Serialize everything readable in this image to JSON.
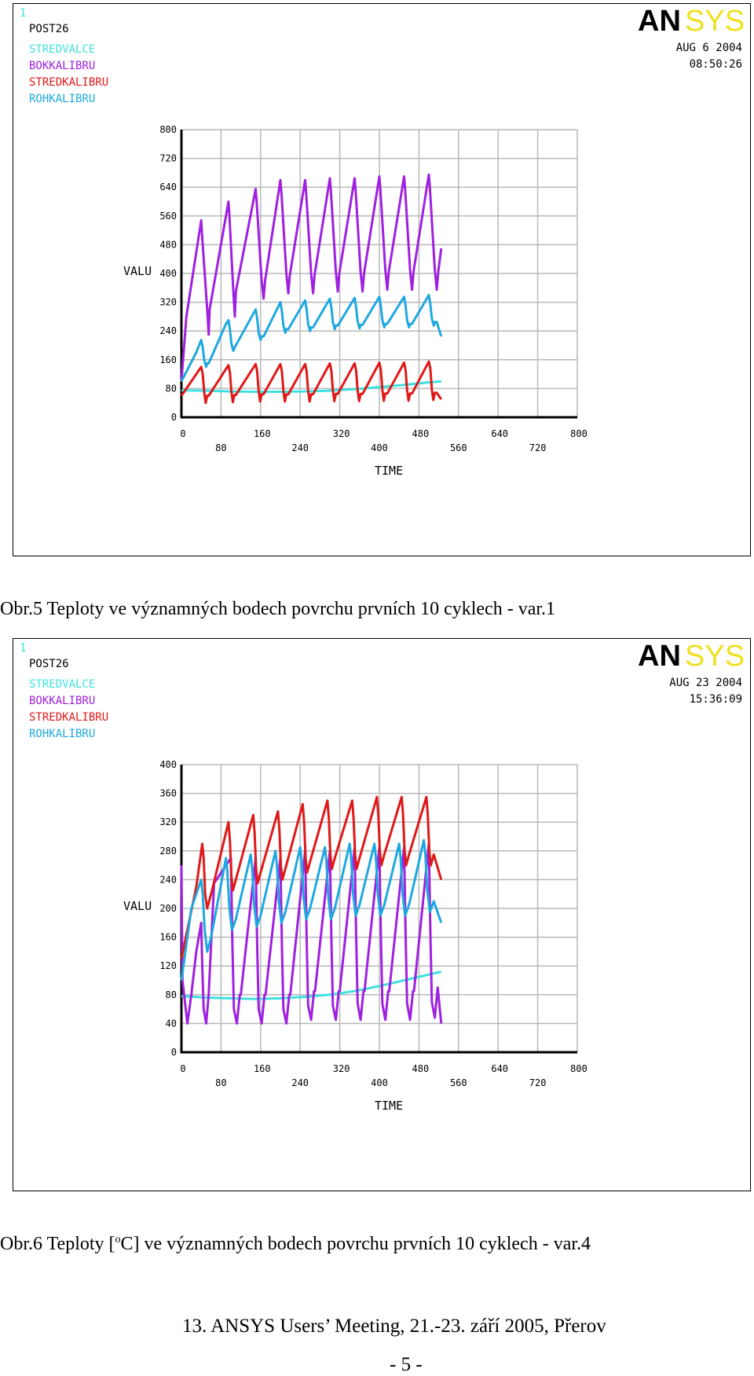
{
  "charts": [
    {
      "window_number": "1",
      "program": "POST26",
      "logo_black": "AN",
      "logo_yellow": "SYS",
      "date": "AUG  6 2004",
      "time": "08:50:26",
      "legend": [
        {
          "name": "STREDVALCE",
          "color": "#3fe0e0"
        },
        {
          "name": "BOKKALIBRU",
          "color": "#a020e0"
        },
        {
          "name": "STREDKALIBRU",
          "color": "#e01818"
        },
        {
          "name": "ROHKALIBRU",
          "color": "#1ea8e0"
        }
      ],
      "ylabel": "VALU",
      "xlabel": "TIME",
      "y_ticks": [
        "0",
        "80",
        "160",
        "240",
        "320",
        "400",
        "480",
        "560",
        "640",
        "720",
        "800"
      ],
      "x_ticks_upper": [
        "0",
        "160",
        "320",
        "480",
        "640",
        "800"
      ],
      "x_ticks_lower": [
        "80",
        "240",
        "400",
        "560",
        "720"
      ]
    },
    {
      "window_number": "1",
      "program": "POST26",
      "logo_black": "AN",
      "logo_yellow": "SYS",
      "date": "AUG 23 2004",
      "time": "15:36:09",
      "legend": [
        {
          "name": "STREDVALCE",
          "color": "#3fe0e0"
        },
        {
          "name": "BOKKALIBRU",
          "color": "#a020e0"
        },
        {
          "name": "STREDKALIBRU",
          "color": "#e01818"
        },
        {
          "name": "ROHKALIBRU",
          "color": "#1ea8e0"
        }
      ],
      "ylabel": "VALU",
      "xlabel": "TIME",
      "y_ticks": [
        "0",
        "40",
        "80",
        "120",
        "160",
        "200",
        "240",
        "280",
        "320",
        "360",
        "400"
      ],
      "x_ticks_upper": [
        "0",
        "160",
        "320",
        "480",
        "640",
        "800"
      ],
      "x_ticks_lower": [
        "80",
        "240",
        "400",
        "560",
        "720"
      ]
    }
  ],
  "chart_data": [
    {
      "type": "line",
      "xlabel": "TIME",
      "ylabel": "VALU",
      "xlim": [
        0,
        800
      ],
      "ylim": [
        0,
        800
      ],
      "grid": true,
      "legend_position": "top-left",
      "series": [
        {
          "name": "STREDVALCE",
          "color": "#3fe0e0",
          "x": [
            0,
            50,
            100,
            150,
            200,
            250,
            300,
            350,
            400,
            450,
            500,
            525
          ],
          "y": [
            75,
            74,
            72,
            71,
            71,
            72,
            74,
            78,
            84,
            90,
            97,
            100
          ]
        },
        {
          "name": "BOKKALIBRU",
          "color": "#a020e0",
          "x": [
            0,
            10,
            40,
            42,
            52,
            55,
            57,
            95,
            97,
            105,
            108,
            110,
            150,
            152,
            162,
            166,
            169,
            200,
            202,
            212,
            216,
            219,
            250,
            252,
            262,
            266,
            269,
            300,
            302,
            312,
            316,
            319,
            350,
            352,
            362,
            366,
            369,
            400,
            402,
            412,
            416,
            419,
            450,
            452,
            462,
            466,
            469,
            500,
            502,
            512,
            516,
            519,
            525
          ],
          "y": [
            100,
            280,
            548,
            500,
            300,
            230,
            300,
            600,
            560,
            350,
            280,
            350,
            635,
            600,
            380,
            330,
            380,
            660,
            625,
            400,
            345,
            395,
            660,
            625,
            400,
            345,
            395,
            665,
            630,
            405,
            350,
            400,
            665,
            630,
            405,
            350,
            400,
            670,
            635,
            410,
            355,
            405,
            670,
            635,
            410,
            355,
            405,
            675,
            640,
            410,
            355,
            405,
            470
          ]
        },
        {
          "name": "STREDKALIBRU",
          "color": "#e01818",
          "x": [
            0,
            40,
            43,
            46,
            49,
            52,
            55,
            95,
            98,
            101,
            104,
            107,
            110,
            150,
            153,
            156,
            159,
            162,
            166,
            200,
            203,
            206,
            209,
            212,
            216,
            250,
            253,
            256,
            259,
            262,
            266,
            300,
            303,
            306,
            309,
            312,
            316,
            350,
            353,
            356,
            359,
            362,
            366,
            400,
            403,
            406,
            409,
            412,
            416,
            450,
            453,
            456,
            459,
            462,
            466,
            500,
            503,
            506,
            509,
            512,
            516,
            525
          ],
          "y": [
            60,
            140,
            120,
            70,
            40,
            60,
            60,
            145,
            125,
            72,
            42,
            62,
            62,
            148,
            128,
            74,
            44,
            64,
            64,
            148,
            128,
            74,
            44,
            64,
            64,
            148,
            128,
            74,
            44,
            64,
            64,
            150,
            130,
            75,
            45,
            65,
            65,
            150,
            130,
            75,
            45,
            65,
            65,
            152,
            132,
            76,
            46,
            66,
            66,
            152,
            132,
            76,
            46,
            66,
            66,
            155,
            135,
            78,
            48,
            68,
            68,
            50
          ]
        },
        {
          "name": "ROHKALIBRU",
          "color": "#1ea8e0",
          "x": [
            0,
            30,
            40,
            43,
            46,
            50,
            52,
            55,
            90,
            95,
            98,
            101,
            105,
            108,
            150,
            153,
            156,
            160,
            162,
            166,
            200,
            203,
            206,
            210,
            212,
            216,
            250,
            253,
            256,
            260,
            262,
            266,
            300,
            303,
            306,
            310,
            312,
            316,
            350,
            353,
            356,
            360,
            362,
            366,
            400,
            403,
            406,
            410,
            412,
            416,
            450,
            453,
            456,
            460,
            462,
            466,
            500,
            503,
            506,
            510,
            512,
            516,
            525
          ],
          "y": [
            100,
            180,
            215,
            195,
            160,
            140,
            150,
            150,
            260,
            270,
            245,
            205,
            185,
            195,
            300,
            275,
            235,
            215,
            225,
            225,
            320,
            295,
            255,
            235,
            245,
            245,
            325,
            300,
            260,
            240,
            250,
            250,
            330,
            305,
            265,
            245,
            255,
            255,
            332,
            307,
            267,
            247,
            257,
            257,
            335,
            310,
            270,
            250,
            260,
            260,
            335,
            310,
            270,
            250,
            260,
            260,
            340,
            315,
            275,
            255,
            265,
            265,
            225
          ]
        }
      ]
    },
    {
      "type": "line",
      "xlabel": "TIME",
      "ylabel": "VALU",
      "xlim": [
        0,
        800
      ],
      "ylim": [
        0,
        400
      ],
      "grid": true,
      "legend_position": "top-left",
      "series": [
        {
          "name": "STREDVALCE",
          "color": "#3fe0e0",
          "x": [
            0,
            50,
            100,
            150,
            200,
            250,
            300,
            350,
            400,
            450,
            500,
            525
          ],
          "y": [
            78,
            76,
            75,
            74,
            75,
            77,
            80,
            85,
            92,
            100,
            108,
            112
          ]
        },
        {
          "name": "BOKKALIBRU",
          "color": "#a020e0",
          "x": [
            0,
            2,
            12,
            20,
            30,
            40,
            42,
            45,
            50,
            55,
            60,
            66,
            100,
            103,
            106,
            112,
            118,
            120,
            150,
            153,
            156,
            162,
            168,
            170,
            200,
            203,
            206,
            212,
            218,
            220,
            250,
            253,
            256,
            262,
            268,
            270,
            300,
            303,
            306,
            312,
            318,
            320,
            350,
            353,
            356,
            362,
            368,
            370,
            400,
            403,
            406,
            412,
            418,
            420,
            450,
            453,
            456,
            462,
            468,
            470,
            500,
            503,
            506,
            512,
            518,
            525
          ],
          "y": [
            260,
            100,
            40,
            80,
            140,
            180,
            120,
            60,
            40,
            80,
            150,
            235,
            270,
            150,
            60,
            40,
            80,
            80,
            270,
            150,
            60,
            40,
            80,
            80,
            270,
            150,
            60,
            40,
            80,
            80,
            280,
            160,
            65,
            45,
            85,
            85,
            280,
            160,
            65,
            45,
            85,
            85,
            285,
            165,
            68,
            45,
            85,
            85,
            285,
            165,
            68,
            45,
            85,
            85,
            285,
            165,
            68,
            45,
            85,
            85,
            290,
            170,
            70,
            48,
            90,
            40
          ]
        },
        {
          "name": "STREDKALIBRU",
          "color": "#e01818",
          "x": [
            0,
            30,
            42,
            45,
            48,
            52,
            60,
            95,
            98,
            101,
            104,
            110,
            145,
            148,
            151,
            154,
            160,
            195,
            198,
            201,
            204,
            210,
            245,
            248,
            251,
            254,
            260,
            295,
            298,
            301,
            304,
            310,
            345,
            348,
            351,
            354,
            360,
            395,
            398,
            401,
            404,
            410,
            445,
            448,
            451,
            454,
            460,
            495,
            498,
            501,
            504,
            510,
            525
          ],
          "y": [
            130,
            230,
            290,
            270,
            220,
            200,
            220,
            320,
            295,
            245,
            225,
            240,
            330,
            305,
            255,
            235,
            250,
            335,
            310,
            260,
            240,
            255,
            345,
            320,
            270,
            250,
            265,
            350,
            325,
            275,
            255,
            270,
            350,
            325,
            275,
            255,
            270,
            355,
            330,
            280,
            260,
            275,
            355,
            330,
            280,
            260,
            275,
            355,
            330,
            280,
            260,
            275,
            240
          ]
        },
        {
          "name": "ROHKALIBRU",
          "color": "#1ea8e0",
          "x": [
            0,
            20,
            40,
            43,
            47,
            52,
            60,
            90,
            93,
            97,
            102,
            110,
            140,
            143,
            147,
            152,
            160,
            190,
            193,
            197,
            202,
            210,
            240,
            243,
            247,
            252,
            260,
            290,
            293,
            297,
            302,
            310,
            340,
            343,
            347,
            352,
            360,
            390,
            393,
            397,
            402,
            410,
            440,
            443,
            447,
            452,
            460,
            490,
            493,
            497,
            502,
            510,
            525
          ],
          "y": [
            100,
            200,
            240,
            220,
            170,
            140,
            160,
            270,
            250,
            200,
            170,
            185,
            275,
            255,
            205,
            175,
            190,
            280,
            260,
            210,
            180,
            195,
            285,
            265,
            215,
            185,
            200,
            285,
            265,
            215,
            185,
            200,
            290,
            270,
            220,
            190,
            205,
            290,
            270,
            220,
            190,
            205,
            290,
            270,
            220,
            190,
            205,
            295,
            275,
            225,
            195,
            210,
            180
          ]
        }
      ]
    }
  ],
  "captions": {
    "caption1": "Obr.5 Teploty ve významných bodech povrchu prvních 10 cyklech - var.1",
    "caption2_pre": "Obr.6 Teploty [",
    "caption2_sup": "o",
    "caption2_post": "C]  ve významných bodech povrchu prvních 10 cyklech - var.4"
  },
  "footer": {
    "text": "13. ANSYS Users’ Meeting, 21.-23. září 2005, Přerov",
    "page": "-  5  -"
  }
}
